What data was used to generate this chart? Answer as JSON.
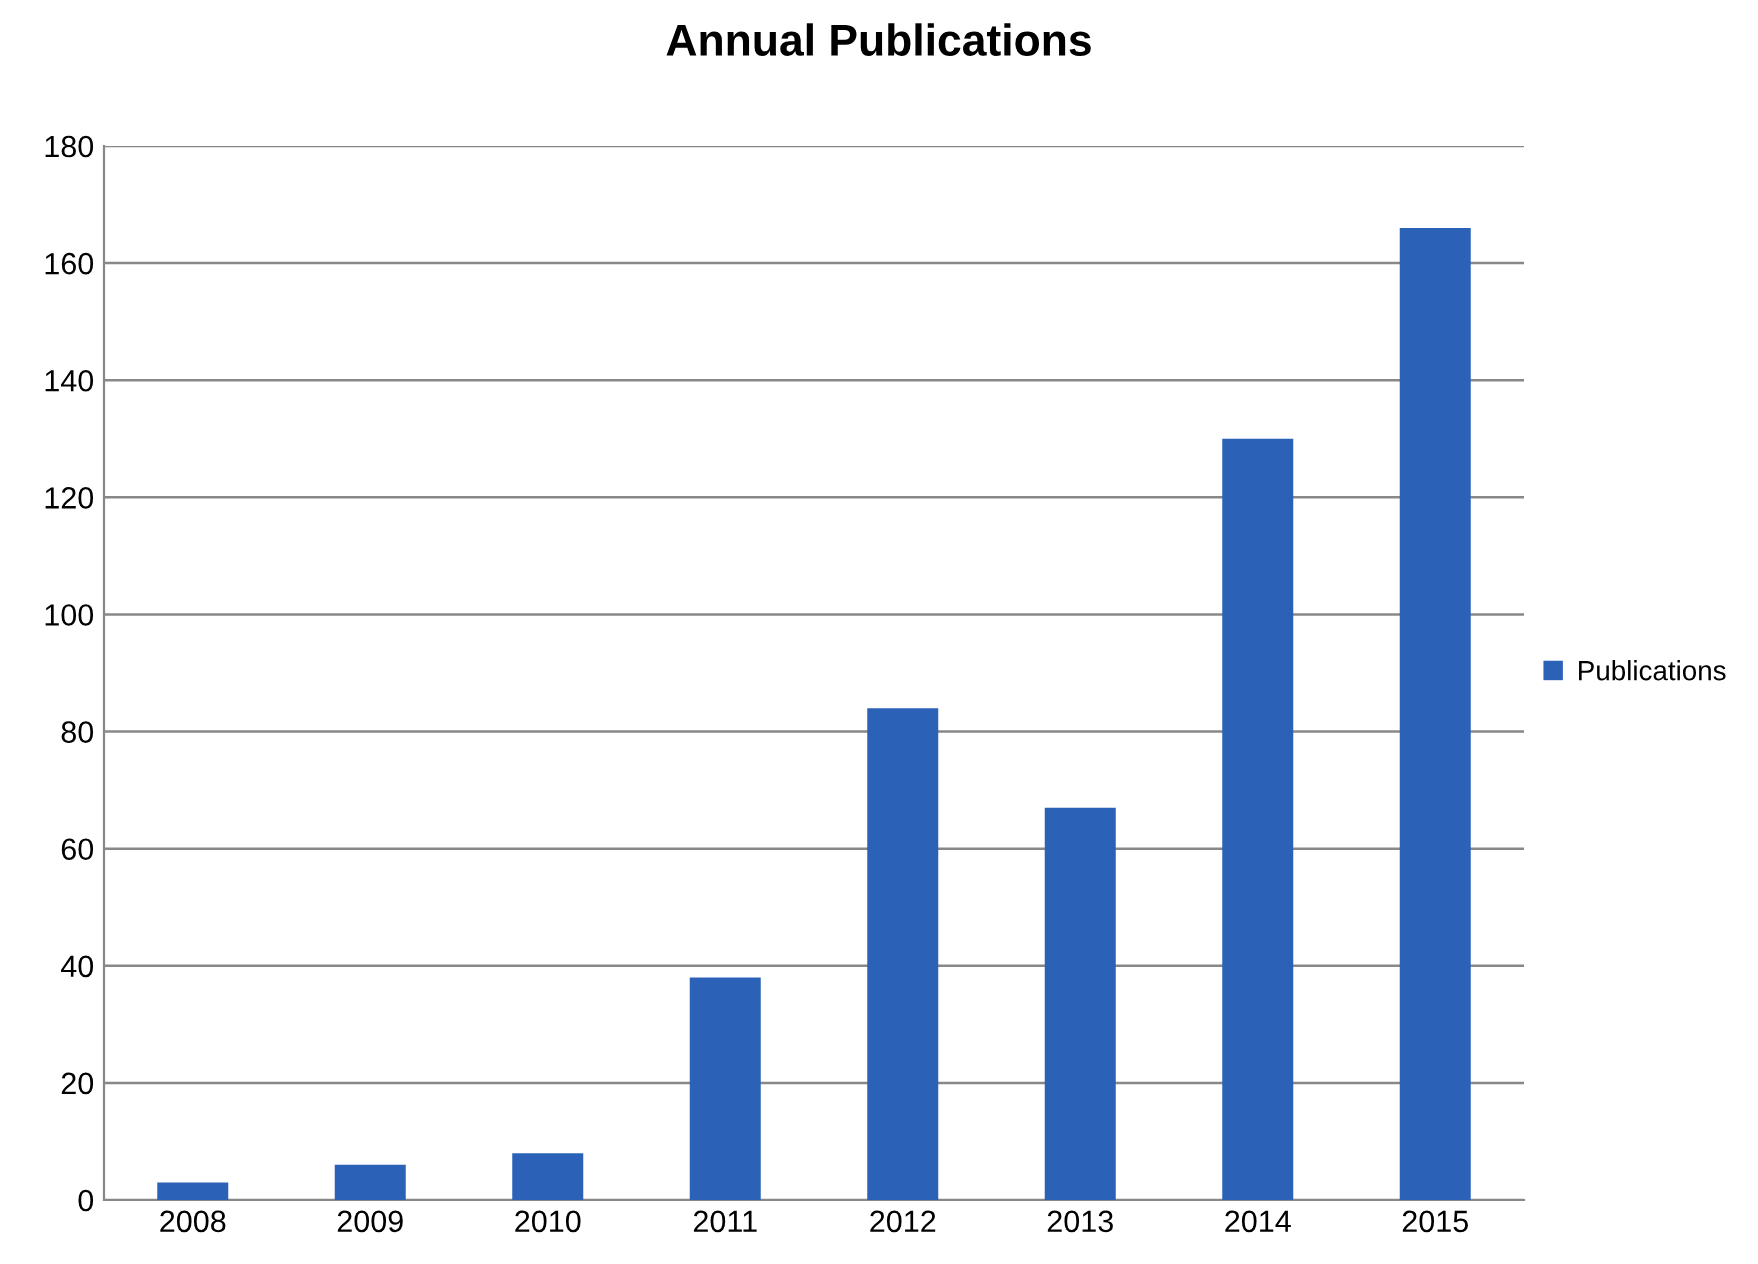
{
  "chart_data": {
    "type": "bar",
    "title": "Annual Publications",
    "categories": [
      "2008",
      "2009",
      "2010",
      "2011",
      "2012",
      "2013",
      "2014",
      "2015"
    ],
    "series": [
      {
        "name": "Publications",
        "color": "#2b62b8",
        "values": [
          3,
          6,
          8,
          38,
          84,
          67,
          130,
          166
        ]
      }
    ],
    "ylim": [
      0,
      180
    ],
    "yticks": [
      0,
      20,
      40,
      60,
      80,
      100,
      120,
      140,
      160,
      180
    ],
    "grid": "y",
    "legend": "right"
  }
}
